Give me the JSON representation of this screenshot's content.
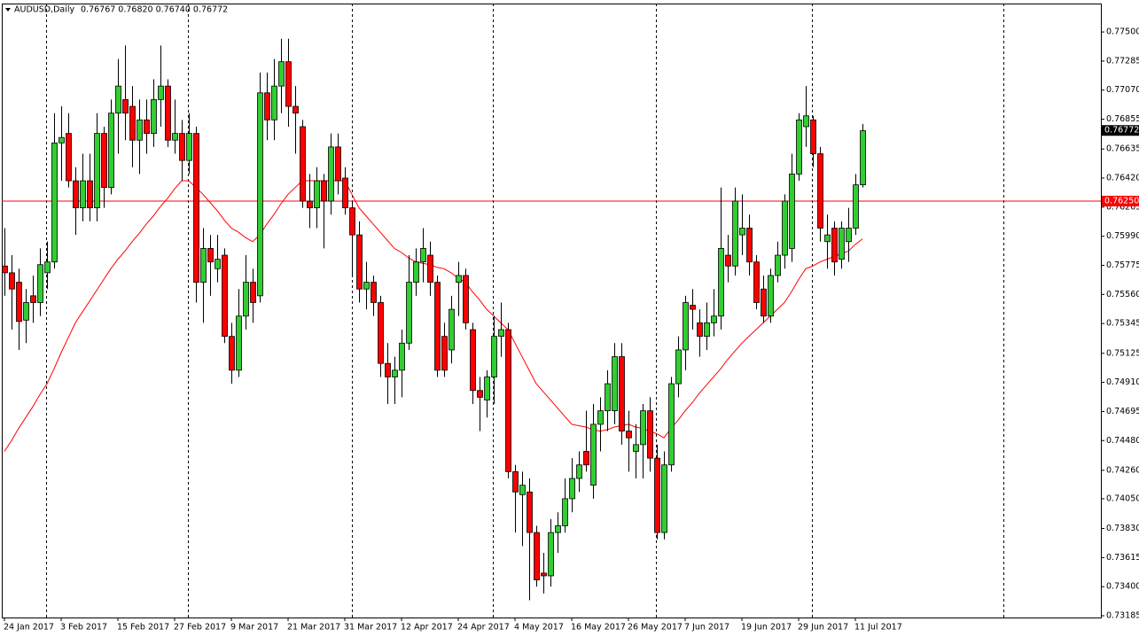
{
  "chart_data": {
    "type": "candlestick",
    "title": "AUDUSD,Daily",
    "quote": "0.76767 0.76820 0.76740 0.76772",
    "categories": [
      "24 Jan 2017",
      null,
      null,
      null,
      null,
      null,
      null,
      null,
      "3 Feb 2017",
      null,
      null,
      null,
      null,
      null,
      null,
      null,
      "15 Feb 2017",
      null,
      null,
      null,
      null,
      null,
      null,
      null,
      "27 Feb 2017",
      null,
      null,
      null,
      null,
      null,
      null,
      null,
      "9 Mar 2017",
      null,
      null,
      null,
      null,
      null,
      null,
      null,
      "21 Mar 2017",
      null,
      null,
      null,
      null,
      null,
      null,
      null,
      "31 Mar 2017",
      null,
      null,
      null,
      null,
      null,
      null,
      null,
      "12 Apr 2017",
      null,
      null,
      null,
      null,
      null,
      null,
      null,
      "24 Apr 2017",
      null,
      null,
      null,
      null,
      null,
      null,
      null,
      "4 May 2017",
      null,
      null,
      null,
      null,
      null,
      null,
      null,
      "16 May 2017",
      null,
      null,
      null,
      null,
      null,
      null,
      null,
      "26 May 2017",
      null,
      null,
      null,
      null,
      null,
      null,
      null,
      "7 Jun 2017",
      null,
      null,
      null,
      null,
      null,
      null,
      null,
      "19 Jun 2017",
      null,
      null,
      null,
      null,
      null,
      null,
      null,
      "29 Jun 2017",
      null,
      null,
      null,
      null,
      null,
      null,
      null,
      "11 Jul 2017",
      null
    ],
    "open": [
      0.7577,
      0.7572,
      0.7565,
      0.7537,
      0.7555,
      0.755,
      0.7572,
      0.758,
      0.7668,
      0.7675,
      0.764,
      0.762,
      0.764,
      0.762,
      0.7675,
      0.7635,
      0.769,
      0.77,
      0.7695,
      0.767,
      0.7685,
      0.7675,
      0.77,
      0.771,
      0.767,
      0.7675,
      0.7655,
      0.7675,
      0.7565,
      0.759,
      0.7575,
      0.7585,
      0.7525,
      0.75,
      0.754,
      0.7565,
      0.7555,
      0.7705,
      0.7685,
      0.771,
      0.7728,
      0.7695,
      0.768,
      0.7625,
      0.762,
      0.764,
      0.7625,
      0.7665,
      0.7642,
      0.762,
      0.76,
      0.756,
      0.7565,
      0.755,
      0.7505,
      0.7495,
      0.75,
      0.752,
      0.7565,
      0.758,
      0.7585,
      0.7565,
      0.7525,
      0.7515,
      0.7565,
      0.757,
      0.753,
      0.7485,
      0.7478,
      0.7495,
      0.7525,
      0.753,
      0.7425,
      0.7408,
      0.741,
      0.738,
      0.735,
      0.7348,
      0.738,
      0.7385,
      0.7405,
      0.742,
      0.744,
      0.7415,
      0.746,
      0.747,
      0.747,
      0.751,
      0.7455,
      0.744,
      0.7445,
      0.747,
      0.7435,
      0.738,
      0.743,
      0.749,
      0.7515,
      0.7548,
      0.7535,
      0.7525,
      0.7535,
      0.754,
      0.7585,
      0.7577,
      0.76,
      0.7605,
      0.758,
      0.756,
      0.754,
      0.757,
      0.7585,
      0.759,
      0.7645,
      0.768,
      0.7685,
      0.766,
      0.7595,
      0.7605,
      0.7582,
      0.7595,
      0.7605,
      0.7637
    ],
    "high": [
      0.7605,
      0.7585,
      0.7575,
      0.756,
      0.757,
      0.759,
      0.7595,
      0.769,
      0.7695,
      0.769,
      0.765,
      0.766,
      0.766,
      0.769,
      0.768,
      0.77,
      0.773,
      0.774,
      0.771,
      0.77,
      0.77,
      0.7715,
      0.774,
      0.7715,
      0.77,
      0.7685,
      0.769,
      0.768,
      0.7605,
      0.76,
      0.76,
      0.759,
      0.7535,
      0.756,
      0.7585,
      0.7575,
      0.772,
      0.772,
      0.773,
      0.7745,
      0.7745,
      0.771,
      0.7685,
      0.7645,
      0.765,
      0.7645,
      0.7675,
      0.7675,
      0.765,
      0.7625,
      0.761,
      0.758,
      0.757,
      0.7555,
      0.752,
      0.751,
      0.753,
      0.7585,
      0.759,
      0.7605,
      0.7595,
      0.757,
      0.7535,
      0.7555,
      0.758,
      0.7575,
      0.7535,
      0.7495,
      0.75,
      0.754,
      0.755,
      0.7535,
      0.743,
      0.7425,
      0.742,
      0.7385,
      0.7365,
      0.739,
      0.7395,
      0.742,
      0.7435,
      0.744,
      0.747,
      0.7475,
      0.748,
      0.75,
      0.752,
      0.752,
      0.747,
      0.746,
      0.7475,
      0.748,
      0.7445,
      0.744,
      0.7495,
      0.7525,
      0.7555,
      0.756,
      0.7545,
      0.755,
      0.756,
      0.7635,
      0.76,
      0.7635,
      0.763,
      0.7615,
      0.7585,
      0.757,
      0.7575,
      0.7595,
      0.763,
      0.766,
      0.769,
      0.771,
      0.7688,
      0.7665,
      0.7615,
      0.761,
      0.761,
      0.762,
      0.7645,
      0.7682
    ],
    "low": [
      0.7555,
      0.753,
      0.7515,
      0.752,
      0.7535,
      0.754,
      0.756,
      0.7575,
      0.764,
      0.7635,
      0.76,
      0.761,
      0.761,
      0.761,
      0.762,
      0.763,
      0.766,
      0.767,
      0.765,
      0.7645,
      0.766,
      0.7665,
      0.768,
      0.7665,
      0.766,
      0.764,
      0.7645,
      0.755,
      0.7535,
      0.7555,
      0.7565,
      0.752,
      0.749,
      0.7495,
      0.753,
      0.7535,
      0.755,
      0.767,
      0.767,
      0.769,
      0.768,
      0.766,
      0.762,
      0.7605,
      0.7605,
      0.759,
      0.7615,
      0.763,
      0.7615,
      0.757,
      0.755,
      0.7545,
      0.754,
      0.7495,
      0.7475,
      0.7475,
      0.748,
      0.7515,
      0.7555,
      0.7565,
      0.7555,
      0.7495,
      0.7495,
      0.7505,
      0.754,
      0.753,
      0.7475,
      0.7455,
      0.7465,
      0.7475,
      0.751,
      0.742,
      0.738,
      0.737,
      0.733,
      0.734,
      0.7335,
      0.734,
      0.7365,
      0.738,
      0.7395,
      0.741,
      0.7425,
      0.7405,
      0.744,
      0.7455,
      0.746,
      0.7445,
      0.7425,
      0.742,
      0.742,
      0.7425,
      0.7375,
      0.7375,
      0.7425,
      0.748,
      0.75,
      0.753,
      0.751,
      0.7515,
      0.7525,
      0.753,
      0.7565,
      0.757,
      0.7585,
      0.757,
      0.7545,
      0.7535,
      0.7535,
      0.7565,
      0.7575,
      0.758,
      0.764,
      0.7665,
      0.765,
      0.7595,
      0.7575,
      0.757,
      0.7575,
      0.758,
      0.76,
      0.7635
    ],
    "close": [
      0.7572,
      0.756,
      0.7536,
      0.755,
      0.755,
      0.7578,
      0.758,
      0.7668,
      0.7672,
      0.764,
      0.762,
      0.764,
      0.762,
      0.7675,
      0.7635,
      0.769,
      0.771,
      0.769,
      0.767,
      0.7685,
      0.7675,
      0.77,
      0.771,
      0.767,
      0.7675,
      0.7655,
      0.7675,
      0.7565,
      0.759,
      0.758,
      0.7582,
      0.7525,
      0.75,
      0.754,
      0.7565,
      0.755,
      0.7705,
      0.7685,
      0.771,
      0.7728,
      0.7695,
      0.769,
      0.7625,
      0.762,
      0.764,
      0.7625,
      0.7665,
      0.764,
      0.762,
      0.76,
      0.756,
      0.7565,
      0.755,
      0.7505,
      0.7495,
      0.75,
      0.752,
      0.7565,
      0.758,
      0.759,
      0.7565,
      0.75,
      0.75,
      0.7545,
      0.757,
      0.7535,
      0.7485,
      0.748,
      0.7495,
      0.7525,
      0.753,
      0.7425,
      0.741,
      0.7415,
      0.738,
      0.7345,
      0.7348,
      0.738,
      0.7385,
      0.7405,
      0.742,
      0.743,
      0.743,
      0.746,
      0.747,
      0.749,
      0.751,
      0.7455,
      0.745,
      0.7445,
      0.747,
      0.7435,
      0.738,
      0.743,
      0.749,
      0.7515,
      0.755,
      0.7545,
      0.7525,
      0.7535,
      0.754,
      0.759,
      0.7577,
      0.7625,
      0.7605,
      0.758,
      0.755,
      0.754,
      0.757,
      0.7585,
      0.7625,
      0.7645,
      0.7685,
      0.7688,
      0.766,
      0.7605,
      0.76,
      0.758,
      0.7605,
      0.7605,
      0.7637,
      0.7677
    ],
    "up_color": "#32cd32",
    "down_color": "#ff0000",
    "wick_color": "#000000",
    "ma": {
      "color": "#ff0000",
      "values": [
        0.744,
        0.7448,
        0.7457,
        0.7465,
        0.7473,
        0.7482,
        0.749,
        0.7501,
        0.7513,
        0.7524,
        0.7535,
        0.7543,
        0.7551,
        0.7559,
        0.7567,
        0.7575,
        0.7582,
        0.7588,
        0.7595,
        0.7601,
        0.7608,
        0.7614,
        0.7621,
        0.7627,
        0.7634,
        0.764,
        0.764,
        0.7635,
        0.763,
        0.7624,
        0.7618,
        0.7611,
        0.7605,
        0.7602,
        0.7598,
        0.7595,
        0.76,
        0.7608,
        0.7615,
        0.7623,
        0.763,
        0.7635,
        0.764,
        0.764,
        0.764,
        0.764,
        0.764,
        0.764,
        0.764,
        0.763,
        0.762,
        0.7614,
        0.7608,
        0.7602,
        0.7596,
        0.759,
        0.7587,
        0.7583,
        0.758,
        0.7579,
        0.7578,
        0.7576,
        0.7575,
        0.7572,
        0.7568,
        0.7565,
        0.7558,
        0.7552,
        0.7545,
        0.754,
        0.7535,
        0.753,
        0.752,
        0.751,
        0.75,
        0.749,
        0.7484,
        0.7478,
        0.7472,
        0.7466,
        0.746,
        0.7459,
        0.7458,
        0.7456,
        0.7455,
        0.7456,
        0.7458,
        0.7459,
        0.746,
        0.7458,
        0.7457,
        0.7455,
        0.7453,
        0.745,
        0.7457,
        0.7463,
        0.747,
        0.7476,
        0.7483,
        0.7489,
        0.7495,
        0.7501,
        0.7508,
        0.7514,
        0.752,
        0.7525,
        0.753,
        0.7535,
        0.754,
        0.7545,
        0.755,
        0.7558,
        0.7567,
        0.7575,
        0.7577,
        0.758,
        0.7582,
        0.7584,
        0.7586,
        0.7588,
        0.7593,
        0.7597
      ]
    },
    "hline": {
      "value": 0.7625,
      "label": "0.76250",
      "color": "#ff0000"
    },
    "last_price": 0.76772,
    "ylim": [
      0.73172,
      0.7771
    ],
    "yticks": [
      {
        "value": 0.775,
        "label": "0.77500"
      },
      0.77285,
      {
        "value": 0.7707,
        "label": "0.77070"
      },
      0.76855,
      0.76635,
      {
        "value": 0.7642,
        "label": "0.76420"
      },
      0.76205,
      {
        "value": 0.7599,
        "label": "0.75990"
      },
      0.75775,
      {
        "value": 0.7556,
        "label": "0.75560"
      },
      0.75345,
      0.75125,
      {
        "value": 0.7491,
        "label": "0.74910"
      },
      0.74695,
      {
        "value": 0.7448,
        "label": "0.74480"
      },
      {
        "value": 0.7426,
        "label": "0.74260"
      },
      {
        "value": 0.7405,
        "label": "0.74050"
      },
      {
        "value": 0.7383,
        "label": "0.73830"
      },
      0.73615,
      {
        "value": 0.734,
        "label": "0.73400"
      },
      0.73185
    ],
    "grid": false
  }
}
